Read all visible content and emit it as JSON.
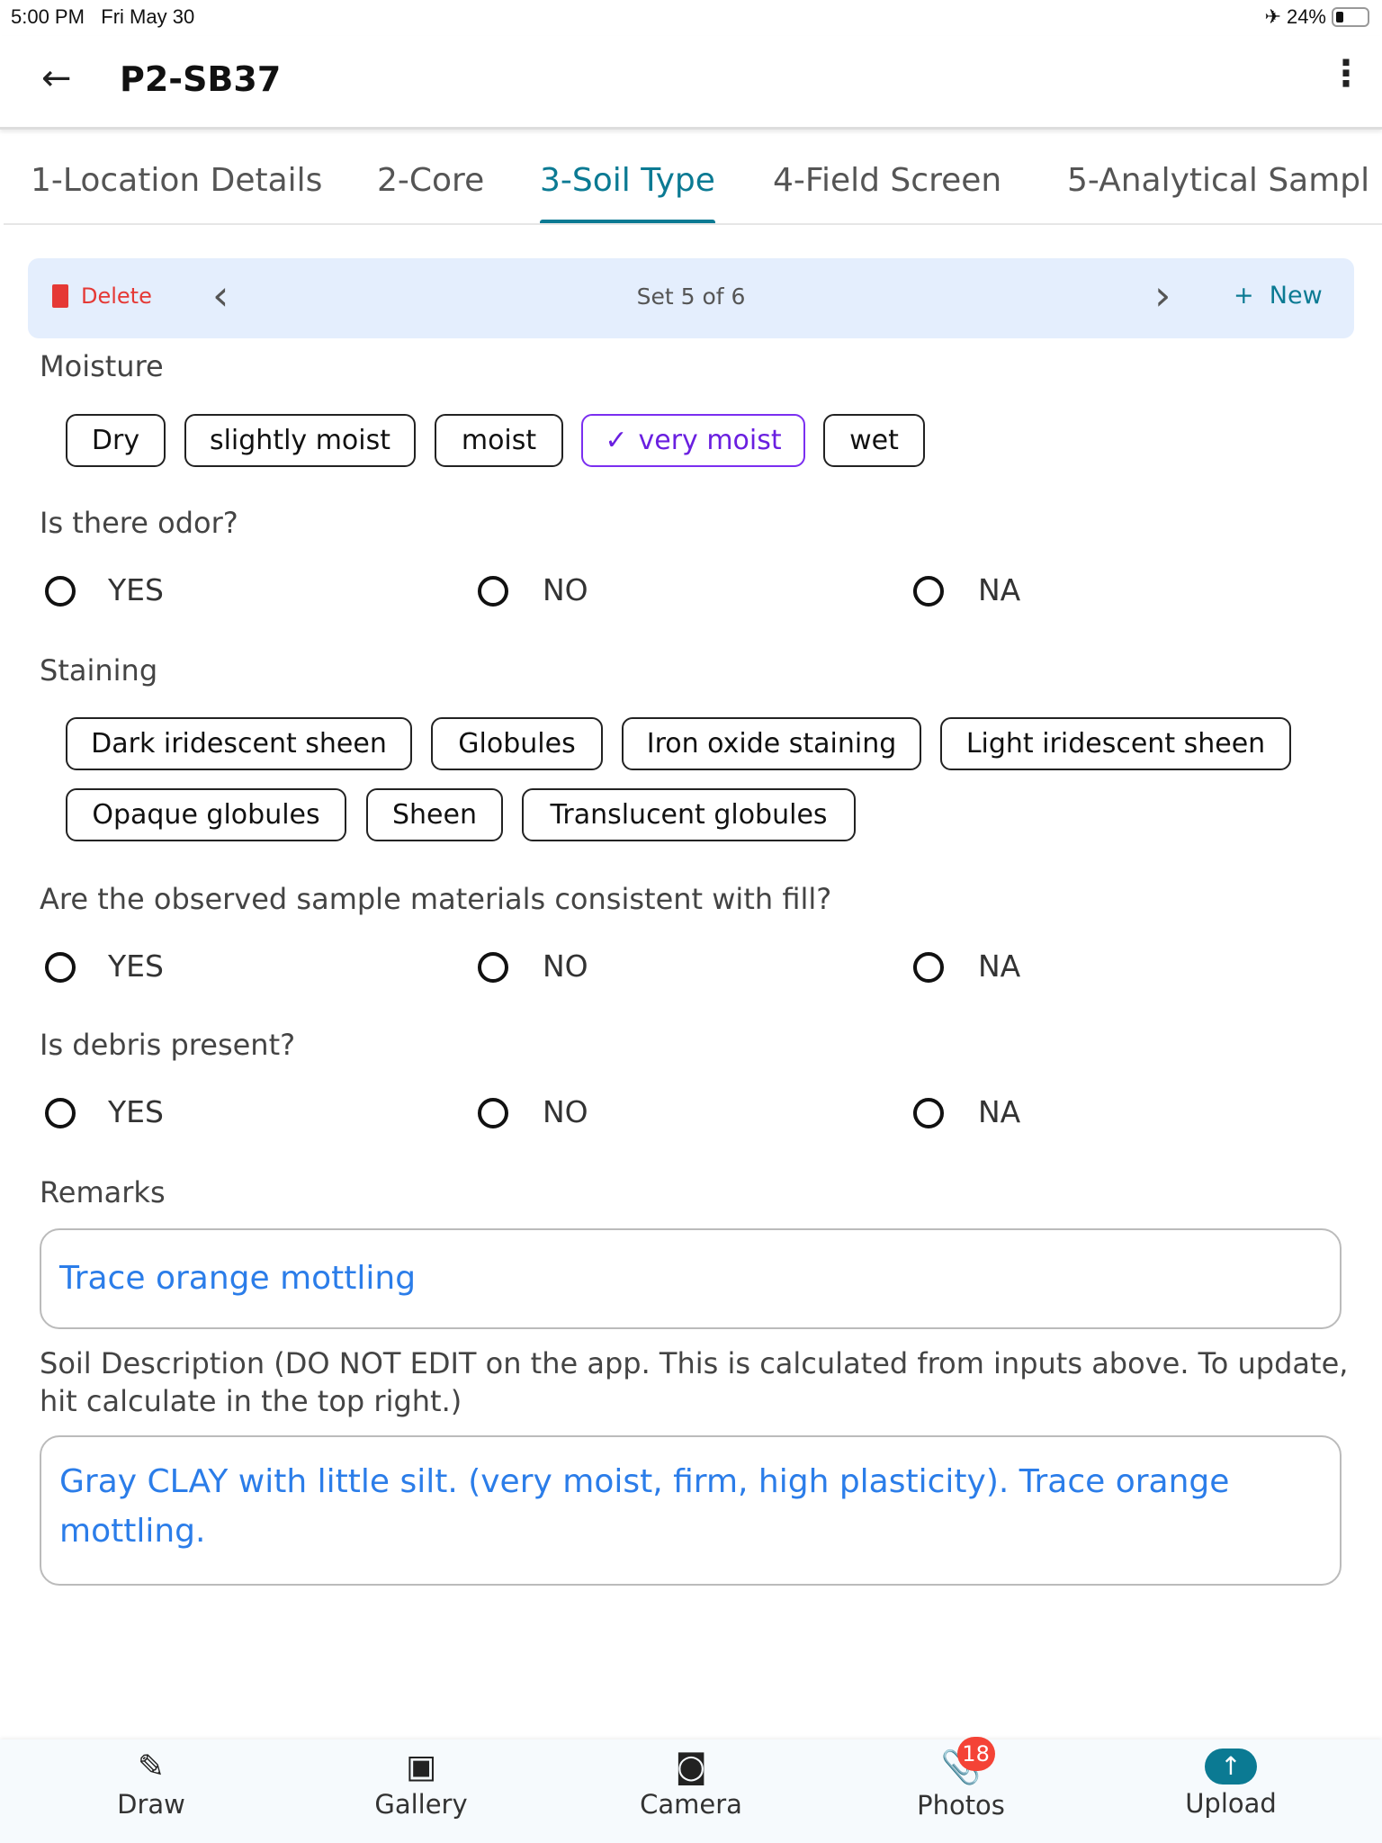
{
  "status": {
    "time": "5:00 PM",
    "date": "Fri May 30",
    "battery": "24%"
  },
  "header": {
    "title": "P2-SB37"
  },
  "tabs": [
    "1-Location Details",
    "2-Core",
    "3-Soil Type",
    "4-Field Screen",
    "5-Analytical Sampl"
  ],
  "active_tab": "3-Soil Type",
  "toolbar": {
    "delete": "Delete",
    "set": "Set 5 of 6",
    "new": "New"
  },
  "moisture": {
    "label": "Moisture",
    "options": [
      "Dry",
      "slightly moist",
      "moist",
      "very moist",
      "wet"
    ],
    "selected": "very moist"
  },
  "odor": {
    "label": "Is there odor?",
    "options": [
      "YES",
      "NO",
      "NA"
    ]
  },
  "staining": {
    "label": "Staining",
    "options": [
      "Dark iridescent sheen",
      "Globules",
      "Iron oxide staining",
      "Light iridescent sheen",
      "Opaque globules",
      "Sheen",
      "Translucent globules"
    ]
  },
  "fill": {
    "label": "Are the observed sample materials consistent with fill?",
    "options": [
      "YES",
      "NO",
      "NA"
    ]
  },
  "debris": {
    "label": "Is debris present?",
    "options": [
      "YES",
      "NO",
      "NA"
    ]
  },
  "remarks": {
    "label": "Remarks",
    "value": "Trace orange mottling"
  },
  "soil": {
    "label": "Soil Description (DO NOT EDIT on the app. This is calculated from inputs above. To update, hit calculate in the top right.)",
    "value": "Gray CLAY with little silt. (very moist, firm, high plasticity). Trace orange mottling."
  },
  "nav": {
    "draw": "Draw",
    "gallery": "Gallery",
    "camera": "Camera",
    "photos": "Photos",
    "photos_badge": "18",
    "upload": "Upload"
  },
  "colors": {
    "accent": "#0b7a93",
    "selected_chip": "#7b2ff0",
    "delete": "#e53935",
    "link": "#2b7de9"
  }
}
